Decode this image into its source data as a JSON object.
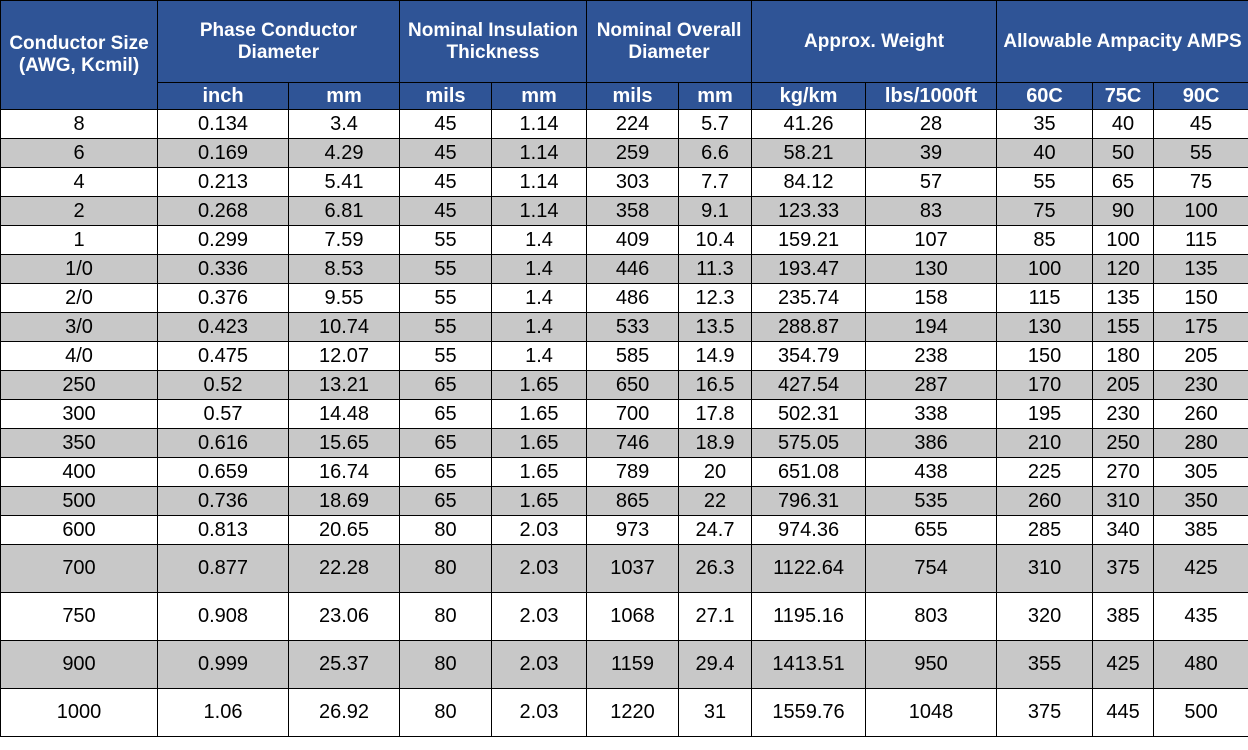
{
  "table": {
    "header": {
      "conductor_size": "Conductor Size (AWG, Kcmil)",
      "groups": [
        {
          "label": "Phase Conductor Diameter",
          "units": [
            "inch",
            "mm"
          ]
        },
        {
          "label": "Nominal Insulation Thickness",
          "units": [
            "mils",
            "mm"
          ]
        },
        {
          "label": "Nominal Overall Diameter",
          "units": [
            "mils",
            "mm"
          ]
        },
        {
          "label": "Approx. Weight",
          "units": [
            "kg/km",
            "lbs/1000ft"
          ]
        },
        {
          "label": "Allowable Ampacity AMPS",
          "units": [
            "60C",
            "75C",
            "90C"
          ]
        }
      ]
    },
    "rows": [
      [
        "8",
        "0.134",
        "3.4",
        "45",
        "1.14",
        "224",
        "5.7",
        "41.26",
        "28",
        "35",
        "40",
        "45"
      ],
      [
        "6",
        "0.169",
        "4.29",
        "45",
        "1.14",
        "259",
        "6.6",
        "58.21",
        "39",
        "40",
        "50",
        "55"
      ],
      [
        "4",
        "0.213",
        "5.41",
        "45",
        "1.14",
        "303",
        "7.7",
        "84.12",
        "57",
        "55",
        "65",
        "75"
      ],
      [
        "2",
        "0.268",
        "6.81",
        "45",
        "1.14",
        "358",
        "9.1",
        "123.33",
        "83",
        "75",
        "90",
        "100"
      ],
      [
        "1",
        "0.299",
        "7.59",
        "55",
        "1.4",
        "409",
        "10.4",
        "159.21",
        "107",
        "85",
        "100",
        "115"
      ],
      [
        "1/0",
        "0.336",
        "8.53",
        "55",
        "1.4",
        "446",
        "11.3",
        "193.47",
        "130",
        "100",
        "120",
        "135"
      ],
      [
        "2/0",
        "0.376",
        "9.55",
        "55",
        "1.4",
        "486",
        "12.3",
        "235.74",
        "158",
        "115",
        "135",
        "150"
      ],
      [
        "3/0",
        "0.423",
        "10.74",
        "55",
        "1.4",
        "533",
        "13.5",
        "288.87",
        "194",
        "130",
        "155",
        "175"
      ],
      [
        "4/0",
        "0.475",
        "12.07",
        "55",
        "1.4",
        "585",
        "14.9",
        "354.79",
        "238",
        "150",
        "180",
        "205"
      ],
      [
        "250",
        "0.52",
        "13.21",
        "65",
        "1.65",
        "650",
        "16.5",
        "427.54",
        "287",
        "170",
        "205",
        "230"
      ],
      [
        "300",
        "0.57",
        "14.48",
        "65",
        "1.65",
        "700",
        "17.8",
        "502.31",
        "338",
        "195",
        "230",
        "260"
      ],
      [
        "350",
        "0.616",
        "15.65",
        "65",
        "1.65",
        "746",
        "18.9",
        "575.05",
        "386",
        "210",
        "250",
        "280"
      ],
      [
        "400",
        "0.659",
        "16.74",
        "65",
        "1.65",
        "789",
        "20",
        "651.08",
        "438",
        "225",
        "270",
        "305"
      ],
      [
        "500",
        "0.736",
        "18.69",
        "65",
        "1.65",
        "865",
        "22",
        "796.31",
        "535",
        "260",
        "310",
        "350"
      ],
      [
        "600",
        "0.813",
        "20.65",
        "80",
        "2.03",
        "973",
        "24.7",
        "974.36",
        "655",
        "285",
        "340",
        "385"
      ],
      [
        "700",
        "0.877",
        "22.28",
        "80",
        "2.03",
        "1037",
        "26.3",
        "1122.64",
        "754",
        "310",
        "375",
        "425"
      ],
      [
        "750",
        "0.908",
        "23.06",
        "80",
        "2.03",
        "1068",
        "27.1",
        "1195.16",
        "803",
        "320",
        "385",
        "435"
      ],
      [
        "900",
        "0.999",
        "25.37",
        "80",
        "2.03",
        "1159",
        "29.4",
        "1413.51",
        "950",
        "355",
        "425",
        "480"
      ],
      [
        "1000",
        "1.06",
        "26.92",
        "80",
        "2.03",
        "1220",
        "31",
        "1559.76",
        "1048",
        "375",
        "445",
        "500"
      ]
    ]
  },
  "colors": {
    "header_bg": "#2f5496",
    "header_text": "#ffffff",
    "shaded_row": "#c8c8c8",
    "plain_row": "#ffffff"
  }
}
